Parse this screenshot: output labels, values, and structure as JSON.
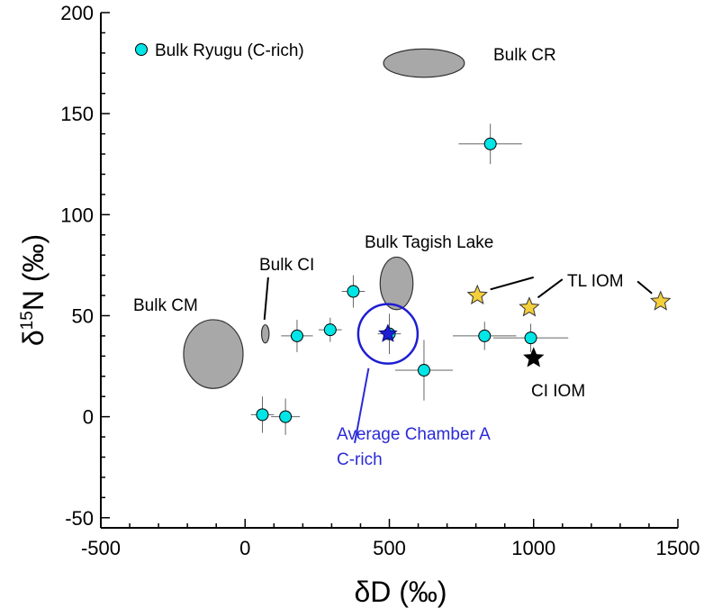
{
  "chart_data": {
    "type": "scatter",
    "title": "",
    "xlabel": "δD (‰)",
    "ylabel": "δ15N (‰)",
    "xlim": [
      -500,
      1500
    ],
    "ylim": [
      -55,
      200
    ],
    "xticks": [
      -500,
      0,
      500,
      1000,
      1500
    ],
    "yticks": [
      -50,
      0,
      50,
      100,
      150,
      200
    ],
    "grid": false,
    "legend": {
      "position": "top-left",
      "label": "Bulk Ryugu (C-rich)"
    },
    "colors": {
      "ryugu": "#00e5e5",
      "tl_iom": "#f5cf3b",
      "ci_iom": "#000000",
      "average": "#1e1ed2",
      "ellipse": "#a8a8a8"
    },
    "series": [
      {
        "name": "Bulk Ryugu (C-rich)",
        "marker": "circle",
        "points": [
          {
            "x": 850,
            "y": 135,
            "xerr": 110,
            "yerr": 10
          },
          {
            "x": 375,
            "y": 62,
            "xerr": 40,
            "yerr": 8
          },
          {
            "x": 180,
            "y": 40,
            "xerr": 55,
            "yerr": 8
          },
          {
            "x": 295,
            "y": 43,
            "xerr": 40,
            "yerr": 6
          },
          {
            "x": 500,
            "y": 41,
            "xerr": 40,
            "yerr": 10
          },
          {
            "x": 620,
            "y": 23,
            "xerr": 100,
            "yerr": 15
          },
          {
            "x": 830,
            "y": 40,
            "xerr": 110,
            "yerr": 7
          },
          {
            "x": 990,
            "y": 39,
            "xerr": 130,
            "yerr": 7
          },
          {
            "x": 60,
            "y": 1,
            "xerr": 40,
            "yerr": 9
          },
          {
            "x": 140,
            "y": 0,
            "xerr": 50,
            "yerr": 9
          }
        ]
      },
      {
        "name": "TL IOM",
        "marker": "star",
        "points": [
          {
            "x": 805,
            "y": 60
          },
          {
            "x": 985,
            "y": 54
          },
          {
            "x": 1440,
            "y": 57
          }
        ]
      },
      {
        "name": "CI IOM",
        "marker": "star",
        "points": [
          {
            "x": 1000,
            "y": 29
          }
        ]
      },
      {
        "name": "Average Chamber A C-rich",
        "marker": "star",
        "points": [
          {
            "x": 495,
            "y": 41
          }
        ]
      }
    ],
    "regions": [
      {
        "label": "Bulk CR",
        "cx": 620,
        "cy": 175,
        "rx": 140,
        "ry": 7
      },
      {
        "label": "Bulk Tagish Lake",
        "cx": 525,
        "cy": 66,
        "rx": 57,
        "ry": 13
      },
      {
        "label": "Bulk CI",
        "cx": 70,
        "cy": 41,
        "rx": 13,
        "ry": 4.5
      },
      {
        "label": "Bulk CM",
        "cx": -110,
        "cy": 31,
        "rx": 103,
        "ry": 17
      }
    ],
    "annotations": [
      "Bulk Ryugu (C-rich)",
      "Bulk CR",
      "Bulk Tagish Lake",
      "Bulk CI",
      "Bulk CM",
      "TL IOM",
      "CI IOM",
      "Average Chamber A",
      "C-rich"
    ]
  }
}
